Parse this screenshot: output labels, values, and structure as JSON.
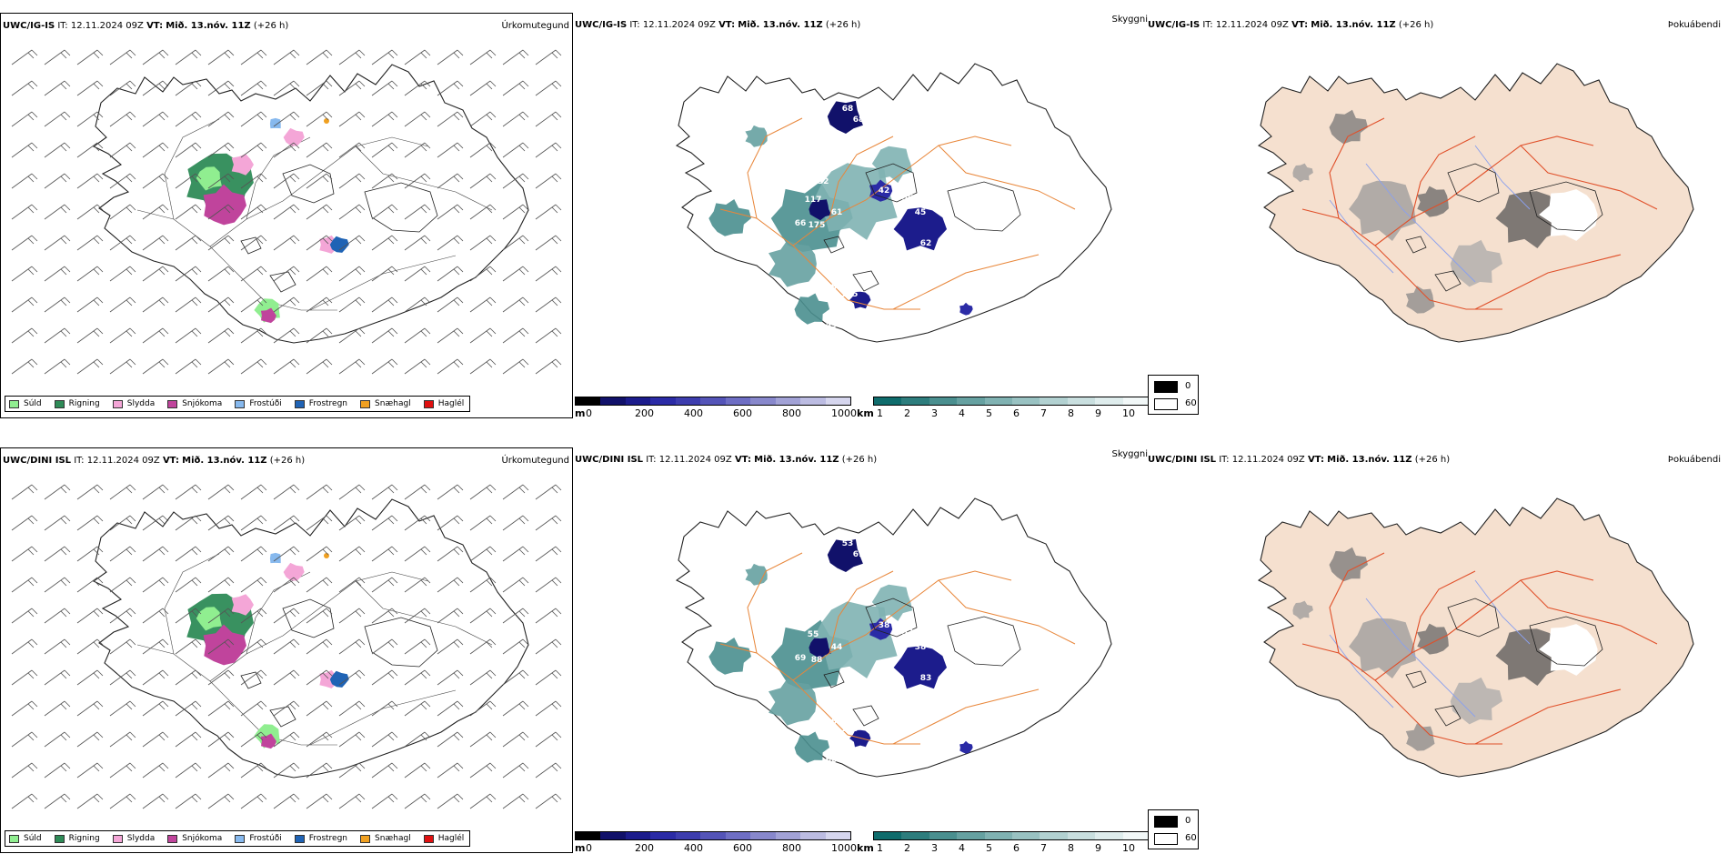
{
  "rows": [
    {
      "model": "UWC/IG-IS",
      "header": {
        "it_label": "IT:",
        "it_value": "12.11.2024 09Z",
        "vt_label": "VT:",
        "vt_value": "Mið. 13.nóv. 11Z",
        "lead": "(+26 h)"
      },
      "cloud_labels": [
        {
          "t": "68"
        },
        {
          "t": "68"
        },
        {
          "t": "62"
        },
        {
          "t": "132"
        },
        {
          "t": "117"
        },
        {
          "t": "42"
        },
        {
          "t": "56"
        },
        {
          "t": "45"
        },
        {
          "t": "61"
        },
        {
          "t": "66"
        },
        {
          "t": "175"
        },
        {
          "t": "503"
        },
        {
          "t": "62"
        },
        {
          "t": "88"
        },
        {
          "t": "105"
        },
        {
          "t": "66"
        },
        {
          "t": "42"
        },
        {
          "t": "45"
        }
      ]
    },
    {
      "model": "UWC/DINI ISL",
      "header": {
        "it_label": "IT:",
        "it_value": "12.11.2024 09Z",
        "vt_label": "VT:",
        "vt_value": "Mið. 13.nóv. 11Z",
        "lead": "(+26 h)"
      },
      "cloud_labels": [
        {
          "t": "53"
        },
        {
          "t": "61"
        },
        {
          "t": "113"
        },
        {
          "t": "90"
        },
        {
          "t": "55"
        },
        {
          "t": "38"
        },
        {
          "t": "52"
        },
        {
          "t": "38"
        },
        {
          "t": "44"
        },
        {
          "t": "69"
        },
        {
          "t": "88"
        },
        {
          "t": "414"
        },
        {
          "t": "83"
        },
        {
          "t": "68"
        },
        {
          "t": "108"
        },
        {
          "t": "70"
        },
        {
          "t": "45"
        },
        {
          "t": "66"
        }
      ]
    }
  ],
  "panel_titles": {
    "precip": "Úrkomutegund",
    "cloud": "Skyggni",
    "fog": "Þokuábendi"
  },
  "precip_legend": [
    {
      "label": "Súld",
      "color": "#90ee90"
    },
    {
      "label": "Rigning",
      "color": "#2e8b57"
    },
    {
      "label": "Slydda",
      "color": "#f4a6d7"
    },
    {
      "label": "Snjókoma",
      "color": "#c0449c"
    },
    {
      "label": "Frostúði",
      "color": "#87b9ee"
    },
    {
      "label": "Frostregn",
      "color": "#1f63b5"
    },
    {
      "label": "Snæhagl",
      "color": "#f0a020"
    },
    {
      "label": "Haglél",
      "color": "#e01010"
    }
  ],
  "cloud_base_scale": {
    "unit": "m",
    "ticks": [
      "0",
      "200",
      "400",
      "600",
      "800",
      "1000"
    ],
    "colors": [
      "#000000",
      "#11116a",
      "#1c1c8c",
      "#2b2ba6",
      "#3d3dae",
      "#5454b8",
      "#6e6ec4",
      "#8888cc",
      "#a2a2d6",
      "#bcbce2",
      "#d6d6ee"
    ]
  },
  "visibility_scale": {
    "unit": "km",
    "ticks": [
      "1",
      "2",
      "3",
      "4",
      "5",
      "6",
      "7",
      "8",
      "9",
      "10"
    ],
    "colors": [
      "#0f6c6c",
      "#2d7d7d",
      "#4a8f8f",
      "#66a1a1",
      "#80b2b2",
      "#99c2c2",
      "#b2d1d1",
      "#c9dfdf",
      "#dfeded",
      "#f2f8f8"
    ]
  },
  "fog_legend": [
    {
      "label": "0",
      "color": "#000000"
    },
    {
      "label": "60",
      "color": "#ffffff"
    }
  ]
}
